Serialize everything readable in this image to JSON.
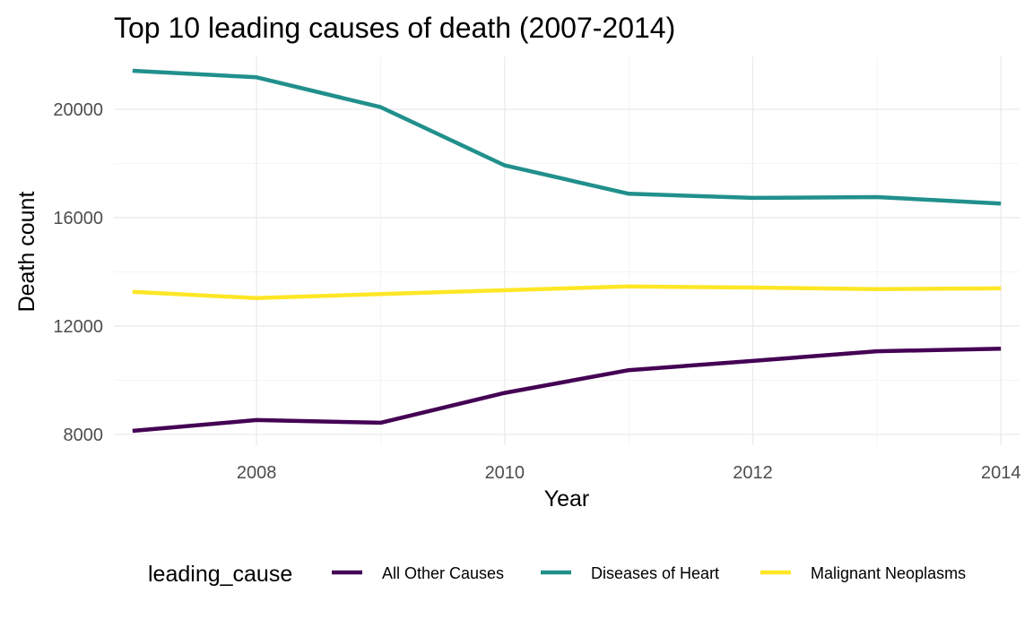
{
  "chart_data": {
    "type": "line",
    "title": "Top 10 leading causes of death (2007-2014)",
    "xlabel": "Year",
    "ylabel": "Death count",
    "x": [
      2007,
      2008,
      2009,
      2010,
      2011,
      2012,
      2013,
      2014
    ],
    "xlim": [
      2006.85,
      2014.15
    ],
    "ylim": [
      7600,
      21950
    ],
    "x_ticks": [
      2008,
      2010,
      2012,
      2014
    ],
    "x_tick_labels": [
      "2008",
      "2010",
      "2012",
      "2014"
    ],
    "y_ticks": [
      8000,
      12000,
      16000,
      20000
    ],
    "y_tick_labels": [
      "8000",
      "12000",
      "16000",
      "20000"
    ],
    "grid": true,
    "legend_title": "leading_cause",
    "legend_position": "bottom",
    "series": [
      {
        "name": "All Other Causes",
        "color": "#440154",
        "values": [
          8130,
          8530,
          8430,
          9530,
          10370,
          10710,
          11070,
          11160
        ]
      },
      {
        "name": "Diseases of Heart",
        "color": "#21908C",
        "values": [
          21420,
          21180,
          20080,
          17930,
          16880,
          16730,
          16760,
          16520
        ]
      },
      {
        "name": "Malignant Neoplasms",
        "color": "#FDE725",
        "values": [
          13260,
          13030,
          13180,
          13320,
          13460,
          13420,
          13360,
          13390
        ]
      }
    ]
  }
}
